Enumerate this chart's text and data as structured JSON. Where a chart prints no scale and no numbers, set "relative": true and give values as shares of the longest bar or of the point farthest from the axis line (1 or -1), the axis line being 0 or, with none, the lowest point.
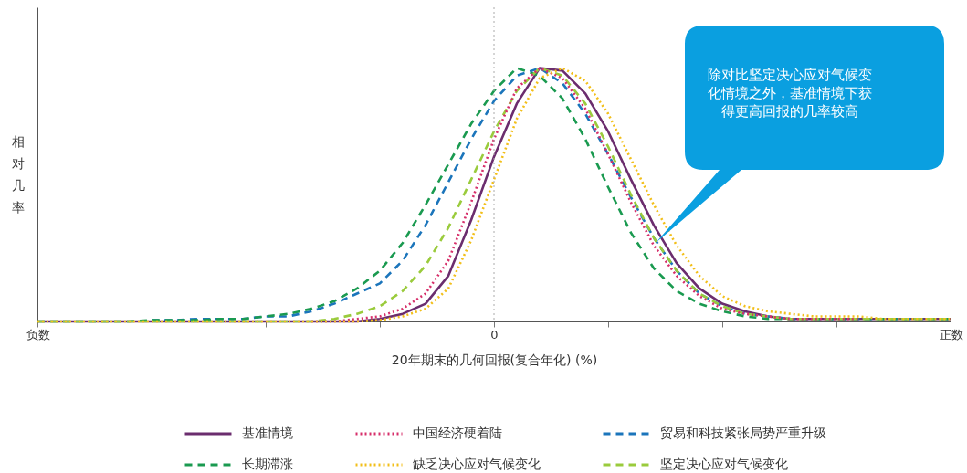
{
  "chart_data": {
    "type": "line",
    "relative": true,
    "ylabel": "相对几率",
    "xlabel": "20年期末的几何回报(复合年化) (%)",
    "categories": [
      "负数",
      null,
      null,
      null,
      null,
      null,
      null,
      null,
      null,
      null,
      null,
      null,
      null,
      null,
      null,
      null,
      null,
      null,
      null,
      null,
      "0",
      null,
      null,
      null,
      null,
      null,
      null,
      null,
      null,
      null,
      null,
      null,
      null,
      null,
      null,
      null,
      null,
      null,
      null,
      null,
      "正数"
    ],
    "series": [
      {
        "name": "基准情境",
        "color": "#6b2d6e",
        "line_style": "solid",
        "values": [
          0,
          0,
          0,
          0,
          0,
          0,
          0,
          0,
          0,
          0,
          0,
          0,
          0,
          0,
          0,
          0.01,
          0.03,
          0.07,
          0.18,
          0.4,
          0.65,
          0.86,
          1,
          0.99,
          0.9,
          0.75,
          0.56,
          0.38,
          0.23,
          0.13,
          0.07,
          0.04,
          0.02,
          0.01,
          0.01,
          0.01,
          0.01,
          0.01,
          0.01,
          0.01,
          0.01
        ]
      },
      {
        "name": "中国经济硬着陆",
        "color": "#d62f6a",
        "line_style": "dotted",
        "values": [
          null,
          null,
          null,
          null,
          null,
          null,
          null,
          null,
          null,
          null,
          null,
          null,
          0,
          0,
          0.01,
          0.02,
          0.05,
          0.11,
          0.24,
          0.47,
          0.72,
          0.92,
          1,
          0.96,
          0.84,
          0.66,
          0.47,
          0.3,
          0.18,
          0.1,
          0.05,
          0.03,
          0.02,
          0.01,
          0.01,
          0.01,
          0.01,
          null,
          null,
          null,
          null
        ]
      },
      {
        "name": "贸易和科技紧张局势严重升级",
        "color": "#1b75bb",
        "line_style": "dashed",
        "values": [
          null,
          null,
          null,
          null,
          null,
          0.005,
          0.005,
          0.01,
          0.01,
          0.01,
          0.02,
          0.02,
          0.04,
          0.07,
          0.11,
          0.15,
          0.24,
          0.38,
          0.55,
          0.72,
          0.87,
          0.97,
          1,
          0.94,
          0.82,
          0.66,
          0.49,
          0.33,
          0.2,
          0.11,
          0.06,
          0.03,
          0.02,
          0.01,
          0.01,
          0.01,
          0.01,
          0.01,
          0.01,
          0.01,
          0.01
        ]
      },
      {
        "name": "长期滞涨",
        "color": "#1a9a50",
        "line_style": "dashed",
        "values": [
          0,
          0,
          0,
          0,
          0,
          0.005,
          0.005,
          0.005,
          0.01,
          0.01,
          0.02,
          0.03,
          0.05,
          0.08,
          0.13,
          0.2,
          0.31,
          0.46,
          0.62,
          0.78,
          0.91,
          1,
          0.97,
          0.88,
          0.72,
          0.53,
          0.35,
          0.21,
          0.12,
          0.07,
          0.04,
          0.02,
          0.01,
          0.01,
          0.01,
          0.01,
          0.01,
          0.01,
          0.01,
          0.01,
          0.01
        ]
      },
      {
        "name": "缺乏决心应对气候变化",
        "color": "#f2bf1a",
        "line_style": "dotted",
        "values": [
          0,
          0,
          0,
          0,
          0,
          0,
          0,
          0,
          0,
          0,
          0,
          0,
          0,
          0,
          0,
          0.005,
          0.02,
          0.05,
          0.13,
          0.32,
          0.56,
          0.8,
          0.96,
          1,
          0.95,
          0.82,
          0.64,
          0.46,
          0.3,
          0.18,
          0.1,
          0.06,
          0.04,
          0.03,
          0.02,
          0.02,
          0.02,
          0.01,
          0.01,
          0.01,
          0.01
        ]
      },
      {
        "name": "坚定决心应对气候变化",
        "color": "#9acb3c",
        "line_style": "dashed",
        "values": [
          0,
          0,
          0,
          0,
          0,
          0,
          0,
          0,
          0,
          0,
          0,
          0,
          0,
          0.01,
          0.03,
          0.06,
          0.12,
          0.22,
          0.37,
          0.56,
          0.75,
          0.91,
          1,
          0.97,
          0.86,
          0.69,
          0.5,
          0.33,
          0.2,
          0.11,
          0.06,
          0.03,
          0.02,
          0.01,
          0.01,
          0.01,
          0.01,
          0.01,
          0.01,
          0.01,
          0.01
        ]
      }
    ],
    "ref_lines": [
      {
        "axis": "x",
        "value": "0",
        "color": "#aaaaaa",
        "line_style": "dotted"
      }
    ],
    "annotations": [
      "除对比坚定决心应对气候变化情境之外，基准情境下获得更高回报的几率较高"
    ],
    "legend": "bottom",
    "grid": false
  }
}
